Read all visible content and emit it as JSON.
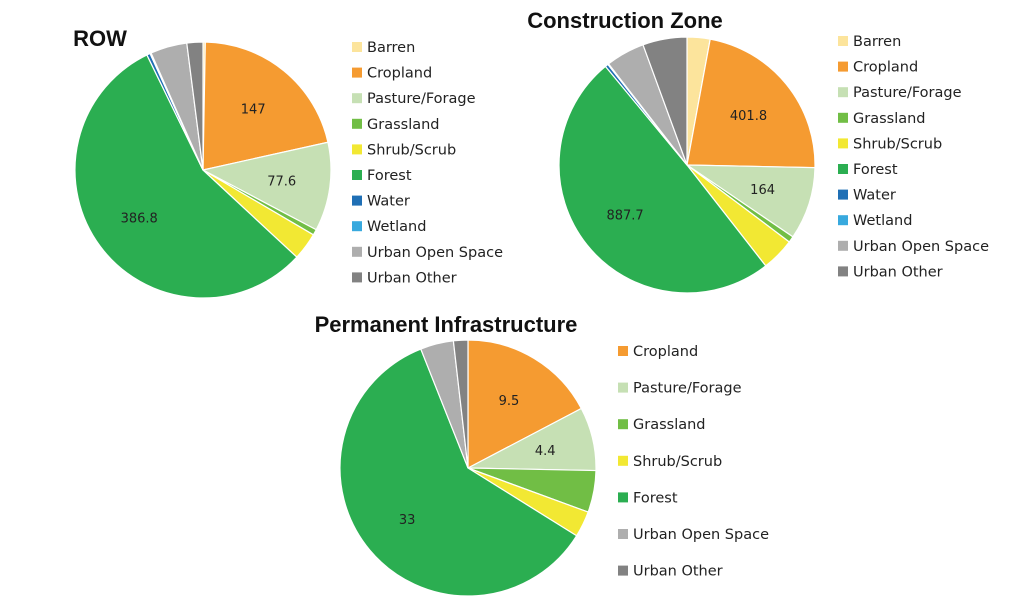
{
  "colors": {
    "Barren": "#FCE49C",
    "Cropland": "#F59B31",
    "Pasture/Forage": "#C6E0B4",
    "Grassland": "#71BE45",
    "Shrub/Scrub": "#F2E833",
    "Forest": "#2BAE51",
    "Water": "#1F6FB5",
    "Wetland": "#38A9DE",
    "Urban Open Space": "#AEAEAE",
    "Urban Other": "#828282"
  },
  "chart_data": [
    {
      "type": "pie",
      "title": "ROW",
      "slices": [
        {
          "category": "Barren",
          "value": 2,
          "label": ""
        },
        {
          "category": "Cropland",
          "value": 147,
          "label": "147"
        },
        {
          "category": "Pasture/Forage",
          "value": 77.6,
          "label": "77.6"
        },
        {
          "category": "Grassland",
          "value": 5,
          "label": ""
        },
        {
          "category": "Shrub/Scrub",
          "value": 24,
          "label": ""
        },
        {
          "category": "Forest",
          "value": 386.8,
          "label": "386.8"
        },
        {
          "category": "Water",
          "value": 3,
          "label": ""
        },
        {
          "category": "Wetland",
          "value": 1,
          "label": ""
        },
        {
          "category": "Urban Open Space",
          "value": 32,
          "label": ""
        },
        {
          "category": "Urban Other",
          "value": 14,
          "label": ""
        }
      ],
      "legend": [
        "Barren",
        "Cropland",
        "Pasture/Forage",
        "Grassland",
        "Shrub/Scrub",
        "Forest",
        "Water",
        "Wetland",
        "Urban Open Space",
        "Urban Other"
      ]
    },
    {
      "type": "pie",
      "title": "Construction Zone",
      "slices": [
        {
          "category": "Barren",
          "value": 52,
          "label": ""
        },
        {
          "category": "Cropland",
          "value": 401.8,
          "label": "401.8"
        },
        {
          "category": "Pasture/Forage",
          "value": 164,
          "label": "164"
        },
        {
          "category": "Grassland",
          "value": 14,
          "label": ""
        },
        {
          "category": "Shrub/Scrub",
          "value": 75,
          "label": ""
        },
        {
          "category": "Forest",
          "value": 887.7,
          "label": "887.7"
        },
        {
          "category": "Water",
          "value": 7,
          "label": ""
        },
        {
          "category": "Wetland",
          "value": 2,
          "label": ""
        },
        {
          "category": "Urban Open Space",
          "value": 88,
          "label": ""
        },
        {
          "category": "Urban Other",
          "value": 100,
          "label": ""
        }
      ],
      "legend": [
        "Barren",
        "Cropland",
        "Pasture/Forage",
        "Grassland",
        "Shrub/Scrub",
        "Forest",
        "Water",
        "Wetland",
        "Urban Open Space",
        "Urban Other"
      ]
    },
    {
      "type": "pie",
      "title": "Permanent Infrastructure",
      "slices": [
        {
          "category": "Cropland",
          "value": 9.5,
          "label": "9.5"
        },
        {
          "category": "Pasture/Forage",
          "value": 4.4,
          "label": "4.4"
        },
        {
          "category": "Grassland",
          "value": 2.9,
          "label": ""
        },
        {
          "category": "Shrub/Scrub",
          "value": 1.8,
          "label": ""
        },
        {
          "category": "Forest",
          "value": 33,
          "label": "33"
        },
        {
          "category": "Urban Open Space",
          "value": 2.3,
          "label": ""
        },
        {
          "category": "Urban Other",
          "value": 1.0,
          "label": ""
        }
      ],
      "legend": [
        "Cropland",
        "Pasture/Forage",
        "Grassland",
        "Shrub/Scrub",
        "Forest",
        "Urban Open Space",
        "Urban Other"
      ]
    }
  ]
}
